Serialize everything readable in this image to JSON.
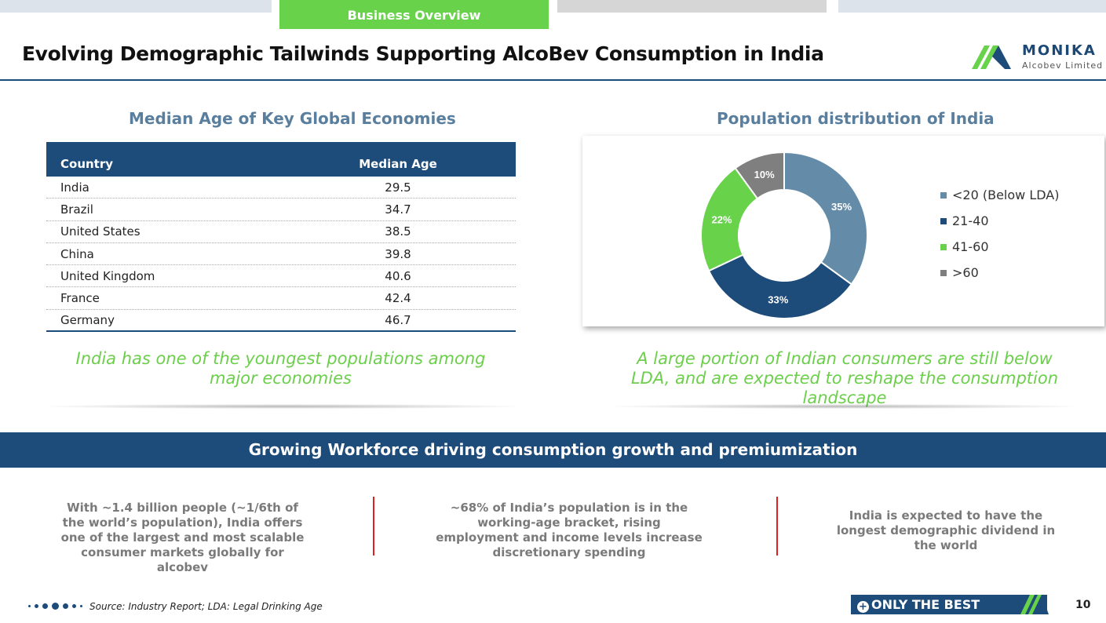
{
  "nav": {
    "active_tab": "Business Overview"
  },
  "title": "Evolving Demographic Tailwinds Supporting AlcoBev Consumption in India",
  "logo": {
    "name": "MONIKA",
    "sub": "Alcobev Limited"
  },
  "median_age": {
    "heading": "Median Age of Key Global Economies",
    "columns": [
      "Country",
      "Median Age"
    ],
    "rows": [
      [
        "India",
        "29.5"
      ],
      [
        "Brazil",
        "34.7"
      ],
      [
        "United States",
        "38.5"
      ],
      [
        "China",
        "39.8"
      ],
      [
        "United Kingdom",
        "40.6"
      ],
      [
        "France",
        "42.4"
      ],
      [
        "Germany",
        "46.7"
      ]
    ],
    "note": "India has one of the youngest populations among major economies"
  },
  "population": {
    "heading": "Population distribution of India",
    "note": "A large portion of Indian consumers are still below LDA, and are expected to reshape the consumption landscape"
  },
  "chart_data": {
    "type": "pie",
    "donut": true,
    "title": "Population distribution of India",
    "slices": [
      {
        "label": "<20 (Below LDA)",
        "value": 35,
        "display": "35%",
        "color": "#648ca8"
      },
      {
        "label": "21-40",
        "value": 33,
        "display": "33%",
        "color": "#1d4b7a"
      },
      {
        "label": "41-60",
        "value": 22,
        "display": "22%",
        "color": "#67d24a"
      },
      {
        "label": ">60",
        "value": 10,
        "display": "10%",
        "color": "#7f7f7f"
      }
    ],
    "legend_position": "right"
  },
  "banner": "Growing Workforce driving consumption growth and premiumization",
  "points": [
    "With ~1.4 billion people (~1/6th of the world’s population), India offers one of the largest and most scalable consumer markets globally for alcobev",
    "~68% of India’s population is in the working-age bracket, rising employment and income levels increase discretionary spending",
    "India is expected to have the longest demographic dividend in the world"
  ],
  "footer": {
    "source": "Source: Industry Report; LDA: Legal Drinking Age",
    "badge": "ONLY THE BEST",
    "page": "10"
  }
}
